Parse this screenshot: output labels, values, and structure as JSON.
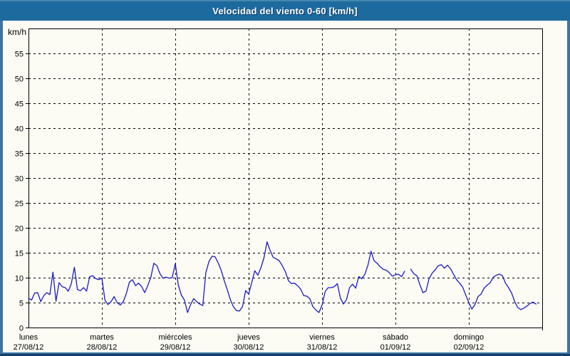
{
  "window": {
    "title": "Velocidad del viento 0-60 [km/h]"
  },
  "colors": {
    "title_bar": "#1d6a9f",
    "title_bar_highlight": "#4786b0",
    "title_text": "#ffffff",
    "frame": "#3b74a7",
    "frame_dark": "#16406a",
    "background": "#fcfcf5",
    "line": "#1a1ac8",
    "grid": "#000000",
    "text": "#000000"
  },
  "chart_data": {
    "type": "line",
    "title": "Velocidad del viento 0-60 [km/h]",
    "unit_label": "km/h",
    "xlabel": "",
    "ylabel": "km/h",
    "ylim": [
      0,
      60
    ],
    "yticks": [
      0,
      5,
      10,
      15,
      20,
      25,
      30,
      35,
      40,
      45,
      50,
      55
    ],
    "grid": "dashed",
    "legend": "none",
    "sampling": "hourly, 24 points per day, gaps encoded as null",
    "days": [
      {
        "name": "lunes",
        "date": "27/08/12"
      },
      {
        "name": "martes",
        "date": "28/08/12"
      },
      {
        "name": "miércoles",
        "date": "29/08/12"
      },
      {
        "name": "jueves",
        "date": "30/08/12"
      },
      {
        "name": "viernes",
        "date": "31/08/12"
      },
      {
        "name": "sábado",
        "date": "01/09/12"
      },
      {
        "name": "domingo",
        "date": "02/09/12"
      }
    ],
    "series": [
      {
        "name": "Velocidad del viento [km/h]",
        "values": [
          5.9,
          5.5,
          6.9,
          7.0,
          5.2,
          6.4,
          7.0,
          6.6,
          11.1,
          5.3,
          9.0,
          8.2,
          8.0,
          7.3,
          8.8,
          12.1,
          7.6,
          7.4,
          8.0,
          7.3,
          10.2,
          10.4,
          9.8,
          9.6,
          9.9,
          5.5,
          4.6,
          5.2,
          6.2,
          5.0,
          4.5,
          5.2,
          6.8,
          9.1,
          9.6,
          8.4,
          8.9,
          8.2,
          7.0,
          8.4,
          10.1,
          12.9,
          12.4,
          10.8,
          9.9,
          10.1,
          9.9,
          10.0,
          12.8,
          8.5,
          6.5,
          5.5,
          3.0,
          4.6,
          5.8,
          5.2,
          4.7,
          4.4,
          11.0,
          13.2,
          14.3,
          14.2,
          13.0,
          11.5,
          9.4,
          7.6,
          5.6,
          4.2,
          3.4,
          3.3,
          4.2,
          7.4,
          6.7,
          9.0,
          11.4,
          10.5,
          12.0,
          14.0,
          17.2,
          15.5,
          14.1,
          13.8,
          13.4,
          12.4,
          11.2,
          9.4,
          8.8,
          8.9,
          8.4,
          7.7,
          6.4,
          6.3,
          5.8,
          4.2,
          3.5,
          3.0,
          4.5,
          7.2,
          8.0,
          8.0,
          8.2,
          8.8,
          5.9,
          4.7,
          5.6,
          8.0,
          8.7,
          7.9,
          10.2,
          9.8,
          10.7,
          12.5,
          15.3,
          13.4,
          12.9,
          12.2,
          11.7,
          11.5,
          11.0,
          10.3,
          10.6,
          10.7,
          10.2,
          11.3,
          null,
          11.7,
          10.8,
          10.4,
          8.6,
          7.0,
          7.3,
          9.8,
          10.9,
          11.6,
          12.4,
          12.6,
          11.9,
          12.5,
          11.8,
          10.7,
          9.6,
          8.9,
          8.1,
          6.5,
          5.0,
          3.7,
          4.6,
          6.2,
          6.7,
          7.9,
          8.5,
          9.0,
          10.1,
          10.5,
          10.7,
          10.4,
          8.9,
          8.0,
          6.9,
          5.2,
          4.0,
          3.6,
          3.9,
          4.3,
          4.8,
          5.1,
          4.7,
          null
        ]
      }
    ]
  }
}
